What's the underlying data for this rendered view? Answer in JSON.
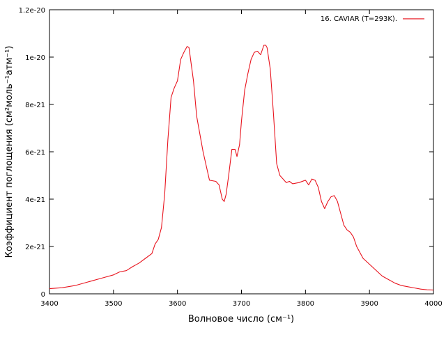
{
  "chart_data": {
    "type": "line",
    "title": "",
    "xlabel": "Волновое число (см⁻¹)",
    "ylabel": "Коэффициент поглощения (см²моль⁻¹атм⁻¹)",
    "xlim": [
      3400,
      4000
    ],
    "ylim": [
      0,
      1.2e-20
    ],
    "x_ticks": [
      3400,
      3500,
      3600,
      3700,
      3800,
      3900,
      4000
    ],
    "x_tick_labels": [
      "3400",
      "3500",
      "3600",
      "3700",
      "3800",
      "3900",
      "4000"
    ],
    "y_ticks": [
      0,
      2e-21,
      4e-21,
      6e-21,
      8e-21,
      1e-20,
      1.2e-20
    ],
    "y_tick_labels": [
      "0",
      "2e-21",
      "4e-21",
      "6e-21",
      "8e-21",
      "1e-20",
      "1.2e-20"
    ],
    "grid": false,
    "legend_position": "top-right",
    "series": [
      {
        "name": "16. CAVIAR (T=293K).",
        "color": "#e8141e",
        "x": [
          3400,
          3420,
          3440,
          3460,
          3480,
          3500,
          3510,
          3520,
          3530,
          3540,
          3550,
          3560,
          3565,
          3570,
          3575,
          3580,
          3585,
          3590,
          3595,
          3600,
          3605,
          3610,
          3615,
          3618,
          3620,
          3625,
          3630,
          3640,
          3650,
          3660,
          3665,
          3670,
          3673,
          3676,
          3680,
          3685,
          3690,
          3693,
          3697,
          3700,
          3705,
          3710,
          3715,
          3720,
          3725,
          3730,
          3735,
          3738,
          3740,
          3745,
          3750,
          3755,
          3760,
          3770,
          3775,
          3780,
          3790,
          3800,
          3805,
          3810,
          3815,
          3820,
          3825,
          3830,
          3835,
          3840,
          3845,
          3850,
          3855,
          3860,
          3865,
          3870,
          3875,
          3880,
          3890,
          3900,
          3910,
          3920,
          3930,
          3940,
          3950,
          3960,
          3970,
          3980,
          3990,
          4000
        ],
        "values": [
          2.2e-22,
          2.6e-22,
          3.5e-22,
          5e-22,
          6.5e-22,
          8e-22,
          9.3e-22,
          9.8e-22,
          1.15e-21,
          1.3e-21,
          1.5e-21,
          1.7e-21,
          2.1e-21,
          2.3e-21,
          2.8e-21,
          4.2e-21,
          6.5e-21,
          8.3e-21,
          8.7e-21,
          9e-21,
          9.9e-21,
          1.02e-20,
          1.045e-20,
          1.04e-20,
          1e-20,
          9e-21,
          7.5e-21,
          6e-21,
          4.8e-21,
          4.75e-21,
          4.6e-21,
          4e-21,
          3.9e-21,
          4.2e-21,
          5e-21,
          6.1e-21,
          6.1e-21,
          5.8e-21,
          6.3e-21,
          7.3e-21,
          8.6e-21,
          9.3e-21,
          9.9e-21,
          1.02e-20,
          1.025e-20,
          1.01e-20,
          1.05e-20,
          1.05e-20,
          1.04e-20,
          9.5e-21,
          7.6e-21,
          5.5e-21,
          5e-21,
          4.7e-21,
          4.75e-21,
          4.65e-21,
          4.7e-21,
          4.8e-21,
          4.6e-21,
          4.85e-21,
          4.8e-21,
          4.5e-21,
          3.9e-21,
          3.6e-21,
          3.9e-21,
          4.1e-21,
          4.15e-21,
          3.9e-21,
          3.4e-21,
          2.9e-21,
          2.7e-21,
          2.6e-21,
          2.4e-21,
          2e-21,
          1.5e-21,
          1.25e-21,
          1e-21,
          7.5e-22,
          6e-22,
          4.5e-22,
          3.5e-22,
          3e-22,
          2.5e-22,
          2e-22,
          1.7e-22,
          1.6e-22
        ]
      }
    ]
  }
}
